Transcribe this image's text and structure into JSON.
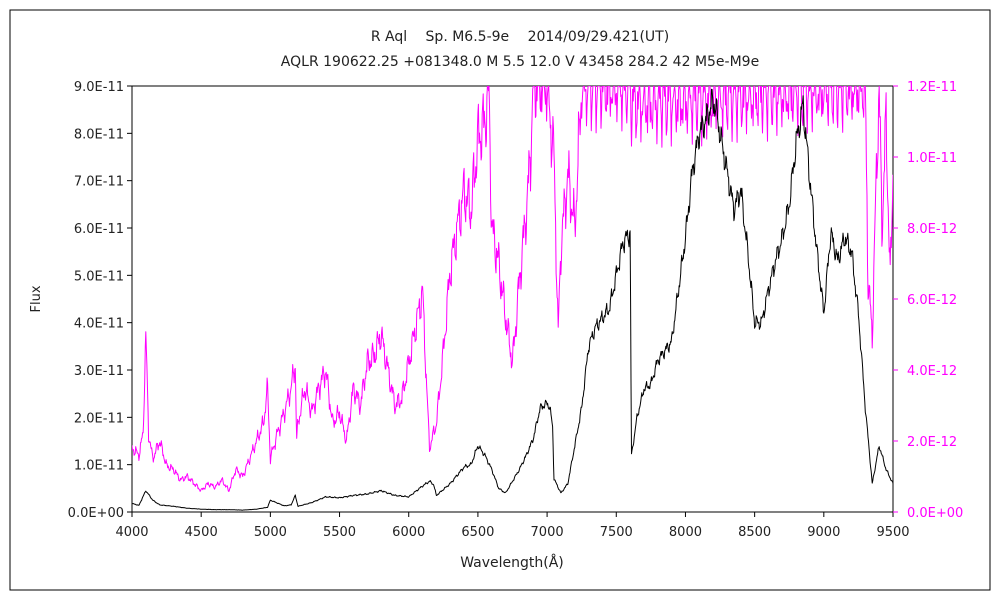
{
  "chart_data": {
    "type": "line",
    "title": "R Aql　 Sp. M6.5-9e　 2014/09/29.421(UT)",
    "subtitle": "AQLR 190622.25 +081348.0 M 5.5 12.0 V 43458 284.2 42 M5e-M9e",
    "xlabel": "Wavelength(Å)",
    "ylabel": "Flux",
    "xlim": [
      4000,
      9500
    ],
    "ylim_left": [
      0,
      9e-11
    ],
    "ylim_right": [
      0,
      1.2e-11
    ],
    "x_ticks": [
      4000,
      4500,
      5000,
      5500,
      6000,
      6500,
      7000,
      7500,
      8000,
      8500,
      9000,
      9500
    ],
    "x_tick_labels": [
      "4000",
      "4500",
      "5000",
      "5500",
      "6000",
      "6500",
      "7000",
      "7500",
      "8000",
      "8500",
      "9000",
      "9500"
    ],
    "y_left_ticks": [
      0,
      1e-11,
      2e-11,
      3e-11,
      4e-11,
      5e-11,
      6e-11,
      7e-11,
      8e-11,
      9e-11
    ],
    "y_left_tick_labels": [
      "0.0E+00",
      "1.0E-11",
      "2.0E-11",
      "3.0E-11",
      "4.0E-11",
      "5.0E-11",
      "6.0E-11",
      "7.0E-11",
      "8.0E-11",
      "9.0E-11"
    ],
    "y_right_ticks": [
      0,
      2e-12,
      4e-12,
      6e-12,
      8e-12,
      1e-11,
      1.2e-11
    ],
    "y_right_tick_labels": [
      "0.0E+00",
      "2.0E-12",
      "4.0E-12",
      "6.0E-12",
      "8.0E-12",
      "1.0E-11",
      "1.2E-11"
    ],
    "grid": false,
    "series": [
      {
        "axis": "left",
        "color": "#000000",
        "x": [
          4000,
          4050,
          4100,
          4150,
          4200,
          4300,
          4400,
          4500,
          4600,
          4700,
          4800,
          4900,
          4980,
          5000,
          5100,
          5150,
          5180,
          5200,
          5300,
          5400,
          5500,
          5600,
          5700,
          5800,
          5900,
          6000,
          6100,
          6150,
          6180,
          6200,
          6300,
          6400,
          6450,
          6500,
          6550,
          6600,
          6650,
          6700,
          6800,
          6850,
          6900,
          6950,
          7000,
          7020,
          7040,
          7050,
          7100,
          7150,
          7200,
          7250,
          7300,
          7350,
          7400,
          7450,
          7500,
          7550,
          7600,
          7610,
          7650,
          7700,
          7750,
          7800,
          7850,
          7900,
          7950,
          8000,
          8050,
          8100,
          8150,
          8200,
          8220,
          8250,
          8300,
          8350,
          8400,
          8450,
          8500,
          8550,
          8600,
          8650,
          8700,
          8750,
          8800,
          8850,
          8900,
          8950,
          9000,
          9050,
          9100,
          9150,
          9200,
          9250,
          9300,
          9350,
          9400,
          9450,
          9500
        ],
        "y": [
          1.8e-12,
          1.4e-12,
          4.5e-12,
          2.5e-12,
          1.5e-12,
          1.2e-12,
          8e-13,
          6e-13,
          5e-13,
          5e-13,
          4e-13,
          6e-13,
          1e-12,
          2.5e-12,
          1.3e-12,
          1.5e-12,
          3.5e-12,
          1.2e-12,
          2e-12,
          3.2e-12,
          3e-12,
          3.5e-12,
          3.8e-12,
          4.5e-12,
          3.5e-12,
          3.2e-12,
          5.5e-12,
          6.5e-12,
          5.8e-12,
          3.5e-12,
          6e-12,
          9.5e-12,
          1e-11,
          1.4e-11,
          1.2e-11,
          9e-12,
          5e-12,
          4e-12,
          9e-12,
          1.2e-11,
          1.55e-11,
          2.2e-11,
          2.3e-11,
          2.2e-11,
          1.8e-11,
          7e-12,
          4e-12,
          6e-12,
          1.4e-11,
          2.2e-11,
          3.5e-11,
          3.9e-11,
          4.1e-11,
          4.3e-11,
          5e-11,
          5.7e-11,
          5.9e-11,
          1.2e-11,
          2e-11,
          2.6e-11,
          2.7e-11,
          3.2e-11,
          3.4e-11,
          3.6e-11,
          4.7e-11,
          5.8e-11,
          7.2e-11,
          8e-11,
          8.3e-11,
          8.7e-11,
          8.5e-11,
          8e-11,
          7.2e-11,
          6.4e-11,
          6.8e-11,
          5.5e-11,
          4e-11,
          4e-11,
          4.7e-11,
          5.3e-11,
          5.8e-11,
          6.5e-11,
          7.8e-11,
          8.6e-11,
          7e-11,
          5.5e-11,
          4.2e-11,
          5.9e-11,
          5.3e-11,
          5.8e-11,
          5.5e-11,
          4.2e-11,
          2.2e-11,
          6e-12,
          1.4e-11,
          9e-12,
          6e-12
        ]
      },
      {
        "axis": "right",
        "color": "#ff00ff",
        "x": [
          4000,
          4050,
          4080,
          4100,
          4120,
          4150,
          4200,
          4250,
          4300,
          4350,
          4400,
          4450,
          4500,
          4550,
          4600,
          4650,
          4700,
          4750,
          4800,
          4850,
          4900,
          4950,
          4980,
          5000,
          5050,
          5100,
          5150,
          5180,
          5190,
          5200,
          5250,
          5300,
          5350,
          5400,
          5450,
          5500,
          5550,
          5600,
          5650,
          5700,
          5750,
          5800,
          5850,
          5900,
          5950,
          6000,
          6050,
          6100,
          6130,
          6150,
          6200,
          6250,
          6300,
          6350,
          6400,
          6450,
          6500,
          6550,
          6580,
          6600,
          6650,
          6700,
          6750,
          6800,
          6850,
          6880,
          6900,
          6950,
          7000,
          7050,
          7080,
          7100,
          7150,
          7200,
          7250,
          7300,
          7350,
          7600,
          7610,
          9300,
          9320,
          9350,
          9380,
          9400,
          9420,
          9450,
          9480,
          9500
        ],
        "y": [
          1.8e-12,
          1.6e-12,
          2.2e-12,
          5e-12,
          2.2e-12,
          1.5e-12,
          2e-12,
          1.3e-12,
          1.2e-12,
          9e-13,
          1e-12,
          8e-13,
          6e-13,
          8e-13,
          7e-13,
          9e-13,
          6e-13,
          1.2e-12,
          1e-12,
          1.5e-12,
          2e-12,
          2.5e-12,
          3.5e-12,
          1.5e-12,
          2.2e-12,
          2.8e-12,
          3.5e-12,
          4.2e-12,
          2e-12,
          2.5e-12,
          3.5e-12,
          2.8e-12,
          3.5e-12,
          4e-12,
          2.5e-12,
          2.8e-12,
          2e-12,
          3.5e-12,
          3e-12,
          4.2e-12,
          4.4e-12,
          5e-12,
          4e-12,
          3e-12,
          3.2e-12,
          4.2e-12,
          5.2e-12,
          6.2e-12,
          3.5e-12,
          1.8e-12,
          2.5e-12,
          4.5e-12,
          6.8e-12,
          8e-12,
          9e-12,
          8.5e-12,
          1.05e-11,
          1.1e-11,
          1.2e-11,
          8e-12,
          7e-12,
          5.5e-12,
          4.2e-12,
          6.5e-12,
          8.5e-12,
          1e-11,
          1.2e-11,
          1.2e-11,
          1.2e-11,
          1e-11,
          5e-12,
          7.5e-12,
          9.5e-12,
          8e-12,
          1.2e-11,
          1.2e-11,
          1.2e-11,
          1.2e-11,
          1.15e-11,
          1.2e-11,
          6.5e-12,
          5e-12,
          9.5e-12,
          1.2e-11,
          8e-12,
          1.1e-11,
          6.5e-12,
          9.5e-12
        ]
      }
    ]
  }
}
